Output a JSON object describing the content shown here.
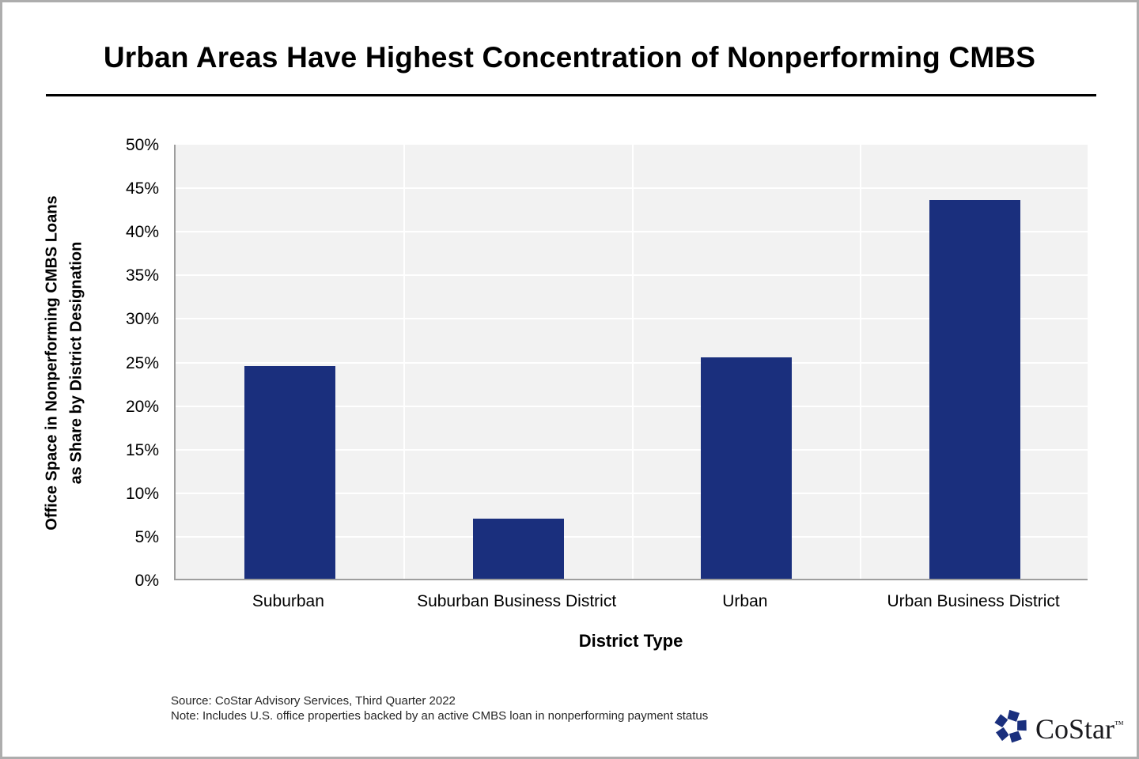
{
  "header": {
    "title": "Urban Areas Have Highest Concentration of Nonperforming CMBS"
  },
  "chart_data": {
    "type": "bar",
    "title": "Urban Areas Have Highest Concentration of Nonperforming CMBS",
    "categories": [
      "Suburban",
      "Suburban Business District",
      "Urban",
      "Urban Business District"
    ],
    "values": [
      24.4,
      6.9,
      25.4,
      43.5
    ],
    "xlabel": "District Type",
    "ylabel_lines": [
      "Office Space in Nonperforming CMBS Loans",
      "as Share by District Designation"
    ],
    "yticks": [
      "0%",
      "5%",
      "10%",
      "15%",
      "20%",
      "25%",
      "30%",
      "35%",
      "40%",
      "45%",
      "50%"
    ],
    "ylim": [
      0,
      50
    ],
    "ytick_step": 5,
    "grid": true,
    "legend_position": "none",
    "colors": {
      "bar": "#1A2F7D",
      "plot_background": "#F2F2F2",
      "gridline": "#FFFFFF",
      "axis_line": "#9E9E9E"
    }
  },
  "footer": {
    "source_line": "Source: CoStar Advisory Services, Third Quarter 2022",
    "note_line": "Note: Includes U.S. office properties backed by an active CMBS loan in nonperforming payment status"
  },
  "logo": {
    "text": "CoStar",
    "trademark": "™",
    "icon": "costar-pinwheel-icon",
    "icon_color": "#1A2F7D",
    "text_color": "#1A1A1E"
  }
}
